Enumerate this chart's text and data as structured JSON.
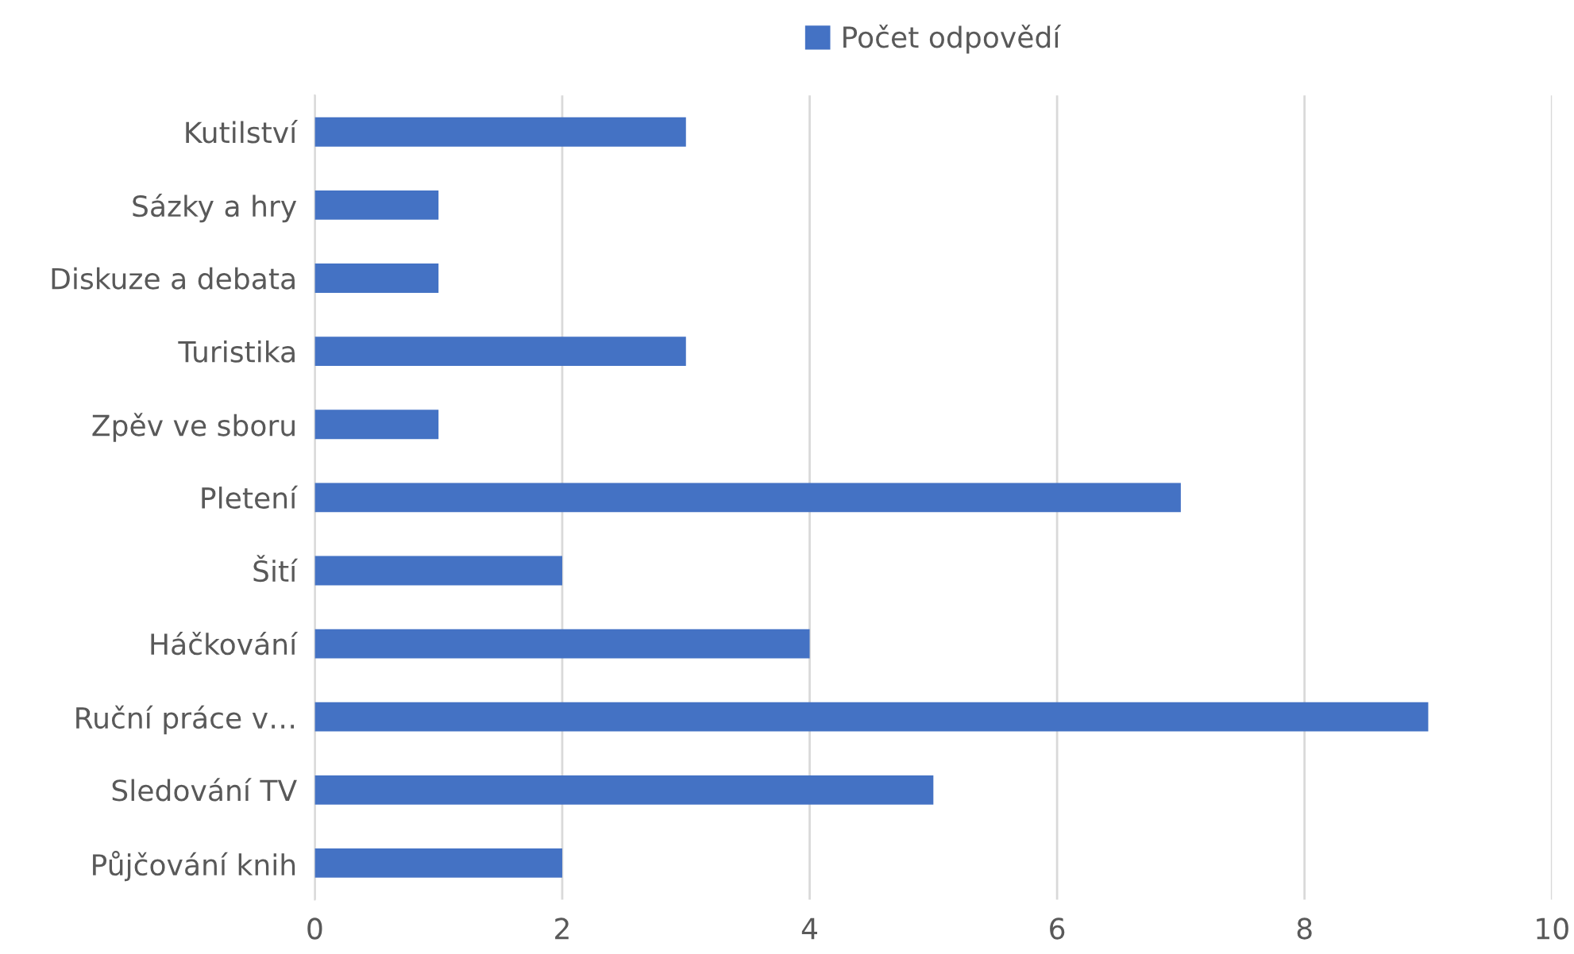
{
  "chart_data": {
    "type": "bar",
    "orientation": "horizontal",
    "categories": [
      "Kutilství",
      "Sázky a hry",
      "Diskuze a debata",
      "Turistika",
      "Zpěv ve sboru",
      "Pletení",
      "Šití",
      "Háčkování",
      "Ruční práce v…",
      "Sledování TV",
      "Půjčování knih"
    ],
    "series": [
      {
        "name": "Počet odpovědí",
        "color": "#4472c4",
        "values": [
          3,
          1,
          1,
          3,
          1,
          7,
          2,
          4,
          9,
          5,
          2
        ]
      }
    ],
    "xlim": [
      0,
      10
    ],
    "xticks": [
      0,
      2,
      4,
      6,
      8,
      10
    ],
    "grid": "x",
    "legend": "top"
  }
}
